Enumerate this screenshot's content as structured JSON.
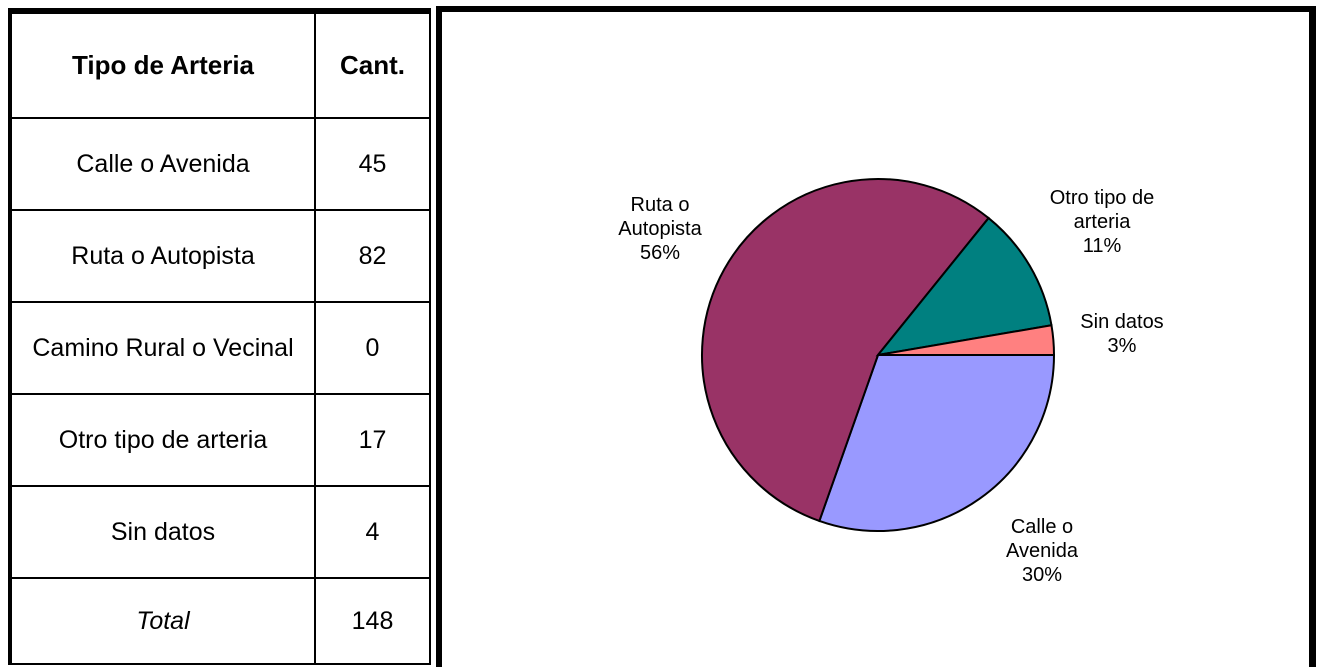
{
  "table": {
    "headers": [
      "Tipo de Arteria",
      "Cant."
    ],
    "rows": [
      {
        "label": "Calle o Avenida",
        "value": "45"
      },
      {
        "label": "Ruta o Autopista",
        "value": "82"
      },
      {
        "label": "Camino Rural o Vecinal",
        "value": "0"
      },
      {
        "label": "Otro tipo de arteria",
        "value": "17"
      },
      {
        "label": "Sin datos",
        "value": "4"
      }
    ],
    "total": {
      "label": "Total",
      "value": "148"
    }
  },
  "chart_data": {
    "type": "pie",
    "title": "",
    "slices": [
      {
        "label": "Calle o Avenida",
        "value": 45,
        "percent_label": "30%",
        "color": "#9999FF",
        "label_lines": [
          "Calle o",
          "Avenida",
          "30%"
        ]
      },
      {
        "label": "Ruta o Autopista",
        "value": 82,
        "percent_label": "56%",
        "color": "#993366",
        "label_lines": [
          "Ruta o",
          "Autopista",
          "56%"
        ]
      },
      {
        "label": "Otro tipo de arteria",
        "value": 17,
        "percent_label": "11%",
        "color": "#008080",
        "label_lines": [
          "Otro tipo de",
          "arteria",
          "11%"
        ]
      },
      {
        "label": "Sin datos",
        "value": 4,
        "percent_label": "3%",
        "color": "#FF8080",
        "label_lines": [
          "Sin datos",
          "3%"
        ]
      }
    ],
    "start_angle_deg": 0,
    "direction": "clockwise",
    "legend": "none"
  }
}
